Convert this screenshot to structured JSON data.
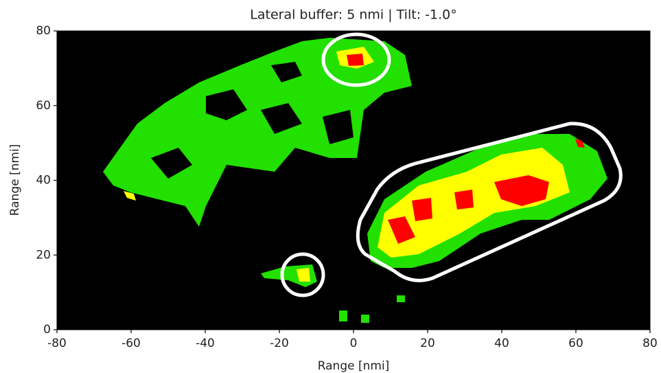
{
  "chart_data": {
    "type": "image",
    "title": "Lateral buffer: 5 nmi | Tilt: -1.0°",
    "x_label": "Range [nmi]",
    "y_label": "Range [nmi]",
    "xlim": [
      -80,
      80
    ],
    "ylim": [
      0,
      80
    ],
    "xticks": [
      -80,
      -60,
      -40,
      -20,
      0,
      20,
      40,
      60,
      80
    ],
    "yticks": [
      0,
      20,
      40,
      60,
      80
    ]
  }
}
